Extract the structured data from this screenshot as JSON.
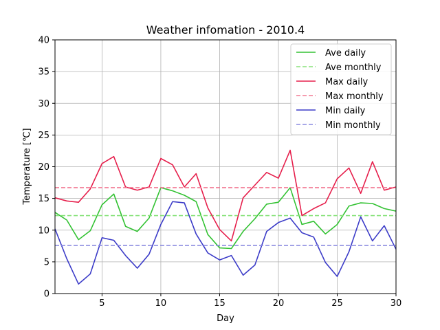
{
  "chart_data": {
    "type": "line",
    "title": "Weather infomation - 2010.4",
    "xlabel": "Day",
    "ylabel": "Temperature [℃]",
    "xlim": [
      1,
      30
    ],
    "ylim": [
      0,
      40
    ],
    "xticks": [
      5,
      10,
      15,
      20,
      25,
      30
    ],
    "yticks": [
      0,
      5,
      10,
      15,
      20,
      25,
      30,
      35,
      40
    ],
    "grid": true,
    "legend_position": "top-right",
    "x": [
      1,
      2,
      3,
      4,
      5,
      6,
      7,
      8,
      9,
      10,
      11,
      12,
      13,
      14,
      15,
      16,
      17,
      18,
      19,
      20,
      21,
      22,
      23,
      24,
      25,
      26,
      27,
      28,
      29,
      30
    ],
    "series": [
      {
        "name": "Ave daily",
        "style": "solid",
        "color": "#33c233",
        "values": [
          12.8,
          11.6,
          8.5,
          9.9,
          14.0,
          15.7,
          10.6,
          9.8,
          11.9,
          16.7,
          16.2,
          15.5,
          14.5,
          9.3,
          7.2,
          7.1,
          9.8,
          11.8,
          14.1,
          14.4,
          16.7,
          10.9,
          11.4,
          9.4,
          10.9,
          13.8,
          14.3,
          14.2,
          13.4,
          13.0
        ]
      },
      {
        "name": "Ave monthly",
        "style": "dashed",
        "color": "#88e27a",
        "values": [
          12.3,
          12.3,
          12.3,
          12.3,
          12.3,
          12.3,
          12.3,
          12.3,
          12.3,
          12.3,
          12.3,
          12.3,
          12.3,
          12.3,
          12.3,
          12.3,
          12.3,
          12.3,
          12.3,
          12.3,
          12.3,
          12.3,
          12.3,
          12.3,
          12.3,
          12.3,
          12.3,
          12.3,
          12.3,
          12.3
        ]
      },
      {
        "name": "Max daily",
        "style": "solid",
        "color": "#e61e4b",
        "values": [
          15.1,
          14.6,
          14.4,
          16.5,
          20.5,
          21.6,
          16.8,
          16.3,
          16.8,
          21.3,
          20.3,
          16.8,
          18.9,
          13.5,
          10.1,
          8.3,
          15.1,
          17.1,
          19.1,
          18.2,
          22.6,
          12.3,
          13.4,
          14.3,
          18.1,
          19.8,
          15.8,
          20.8,
          16.3,
          16.8
        ]
      },
      {
        "name": "Max monthly",
        "style": "dashed",
        "color": "#f27a94",
        "values": [
          16.7,
          16.7,
          16.7,
          16.7,
          16.7,
          16.7,
          16.7,
          16.7,
          16.7,
          16.7,
          16.7,
          16.7,
          16.7,
          16.7,
          16.7,
          16.7,
          16.7,
          16.7,
          16.7,
          16.7,
          16.7,
          16.7,
          16.7,
          16.7,
          16.7,
          16.7,
          16.7,
          16.7,
          16.7,
          16.7
        ]
      },
      {
        "name": "Min daily",
        "style": "solid",
        "color": "#3c3cc8",
        "values": [
          10.2,
          5.5,
          1.5,
          3.1,
          8.8,
          8.4,
          6.0,
          4.0,
          6.2,
          10.9,
          14.5,
          14.3,
          9.4,
          6.4,
          5.3,
          6.0,
          2.9,
          4.5,
          9.8,
          11.2,
          11.9,
          9.6,
          8.9,
          4.9,
          2.7,
          6.6,
          12.1,
          8.3,
          10.7,
          7.0
        ]
      },
      {
        "name": "Min monthly",
        "style": "dashed",
        "color": "#8b8be0",
        "values": [
          7.6,
          7.6,
          7.6,
          7.6,
          7.6,
          7.6,
          7.6,
          7.6,
          7.6,
          7.6,
          7.6,
          7.6,
          7.6,
          7.6,
          7.6,
          7.6,
          7.6,
          7.6,
          7.6,
          7.6,
          7.6,
          7.6,
          7.6,
          7.6,
          7.6,
          7.6,
          7.6,
          7.6,
          7.6,
          7.6
        ]
      }
    ]
  }
}
